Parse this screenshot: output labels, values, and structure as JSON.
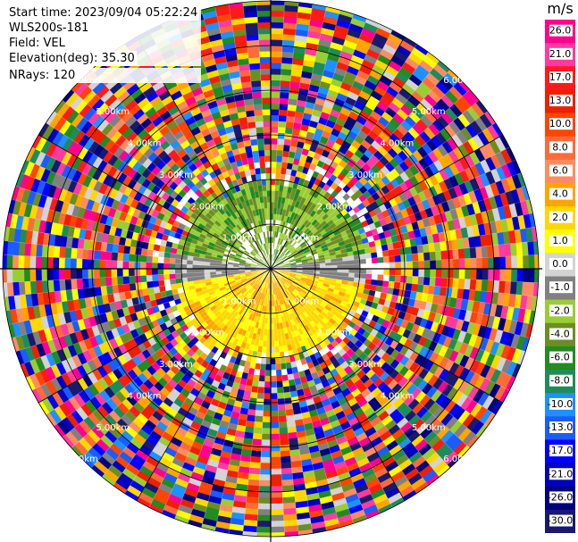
{
  "info": {
    "start_time": "Start time: 2023/09/04 05:22:24",
    "instrument": "WLS200s-181",
    "field": "Field: VEL",
    "elevation": "Elevation(deg): 35.30",
    "nrays": "NRays: 120"
  },
  "chart_data": {
    "type": "heatmap",
    "subtype": "polar-ppi",
    "field": "VEL",
    "nrays": 120,
    "elevation_deg": 35.3,
    "range_rings_km": [
      1.0,
      2.0,
      3.0,
      4.0,
      5.0,
      6.0
    ],
    "range_ring_labels": [
      "1.00km",
      "2.00km",
      "3.00km",
      "4.00km",
      "5.00km",
      "6.00km"
    ],
    "colorbar": {
      "unit": "m/s",
      "tick_labels": [
        "26.0",
        "21.0",
        "17.0",
        "13.0",
        "10.0",
        "8.0",
        "6.0",
        "4.0",
        "2.0",
        "1.0",
        "0.0",
        "-1.0",
        "-2.0",
        "-4.0",
        "-6.0",
        "-8.0",
        "-10.0",
        "-13.0",
        "-17.0",
        "-21.0",
        "-26.0",
        "-30.0"
      ],
      "colors": [
        "#ff0090",
        "#ff3aa0",
        "#ff1a1a",
        "#ee2000",
        "#ff4500",
        "#ff6a3a",
        "#ff8c60",
        "#ffa500",
        "#ffd700",
        "#ffff00",
        "#d3d3d3",
        "#808080",
        "#9acd32",
        "#6b8e23",
        "#228b22",
        "#1e8c5a",
        "#1e90ff",
        "#1a5cff",
        "#0000ff",
        "#0000c0",
        "#000080",
        "#191970"
      ]
    }
  }
}
